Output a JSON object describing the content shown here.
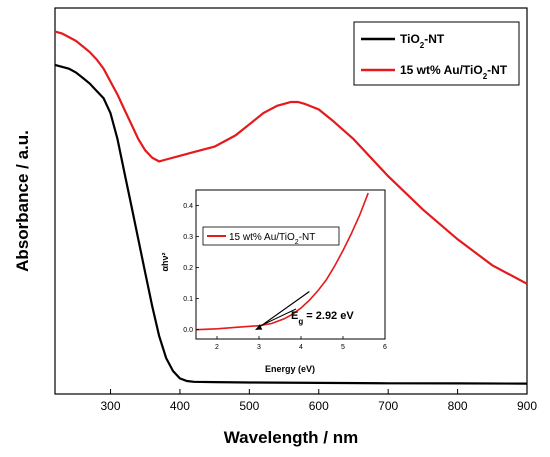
{
  "chart_data": [
    {
      "type": "line",
      "xlabel": "Wavelength / nm",
      "ylabel": "Absorbance / a.u.",
      "xlim": [
        220,
        900
      ],
      "x_ticks": [
        300,
        400,
        500,
        600,
        700,
        800,
        900
      ],
      "y_ticks_shown": false,
      "grid": false,
      "legend_placement": "top-right",
      "legend_labels": [
        {
          "main": "TiO",
          "sub": "2",
          "tail": "-NT"
        },
        {
          "main": "15 wt% Au/TiO",
          "sub": "2",
          "tail": "-NT"
        }
      ],
      "series": [
        {
          "name": "TiO2-NT",
          "color": "#000000",
          "x": [
            220,
            230,
            240,
            250,
            260,
            270,
            280,
            290,
            300,
            310,
            320,
            330,
            340,
            350,
            360,
            370,
            380,
            390,
            400,
            410,
            420,
            450,
            500,
            600,
            700,
            800,
            900
          ],
          "y": [
            0.86,
            0.855,
            0.85,
            0.84,
            0.825,
            0.81,
            0.79,
            0.77,
            0.73,
            0.66,
            0.57,
            0.48,
            0.39,
            0.3,
            0.21,
            0.13,
            0.07,
            0.035,
            0.015,
            0.008,
            0.006,
            0.005,
            0.004,
            0.003,
            0.002,
            0.0015,
            0.001
          ]
        },
        {
          "name": "15 wt% Au/TiO2-NT",
          "color": "#e41a1c",
          "x": [
            220,
            230,
            240,
            250,
            260,
            270,
            280,
            290,
            300,
            310,
            320,
            330,
            340,
            350,
            360,
            370,
            380,
            400,
            420,
            450,
            480,
            500,
            520,
            540,
            560,
            570,
            580,
            600,
            620,
            650,
            680,
            700,
            750,
            800,
            850,
            900
          ],
          "y": [
            0.95,
            0.945,
            0.935,
            0.925,
            0.91,
            0.895,
            0.875,
            0.85,
            0.815,
            0.78,
            0.74,
            0.7,
            0.66,
            0.63,
            0.61,
            0.6,
            0.605,
            0.615,
            0.625,
            0.64,
            0.67,
            0.7,
            0.73,
            0.75,
            0.76,
            0.76,
            0.755,
            0.74,
            0.71,
            0.66,
            0.6,
            0.56,
            0.47,
            0.39,
            0.32,
            0.27
          ]
        }
      ]
    },
    {
      "type": "line",
      "inset": true,
      "xlabel": "Energy (eV)",
      "ylabel": "αhν²",
      "xlim": [
        1.5,
        6
      ],
      "ylim": [
        -0.03,
        0.45
      ],
      "x_ticks": [
        2,
        3,
        4,
        5,
        6
      ],
      "y_ticks": [
        0.0,
        0.1,
        0.2,
        0.3,
        0.4
      ],
      "y_tick_labels": [
        "0.0",
        "0.1",
        "0.2",
        "0.3",
        "0.4"
      ],
      "legend_placement": "top-left",
      "legend_labels": [
        {
          "main": "15 wt% Au/TiO",
          "sub": "2",
          "tail": "-NT"
        }
      ],
      "series": [
        {
          "name": "15 wt% Au/TiO2-NT",
          "color": "#e41a1c",
          "x": [
            1.5,
            2.0,
            2.5,
            3.0,
            3.3,
            3.6,
            3.8,
            4.0,
            4.2,
            4.4,
            4.6,
            4.8,
            5.0,
            5.2,
            5.4,
            5.6
          ],
          "y": [
            0.0,
            0.003,
            0.008,
            0.013,
            0.02,
            0.035,
            0.05,
            0.07,
            0.095,
            0.125,
            0.16,
            0.205,
            0.255,
            0.31,
            0.37,
            0.44
          ]
        }
      ],
      "fit_line": {
        "x": [
          2.92,
          4.2
        ],
        "y": [
          0.0,
          0.123
        ],
        "color": "#000000"
      },
      "annotation": {
        "text_main": "E",
        "text_sub": "g",
        "text_tail": " = 2.92 eV",
        "arrow_target_x": 2.92,
        "arrow_target_y": 0.0
      }
    }
  ]
}
